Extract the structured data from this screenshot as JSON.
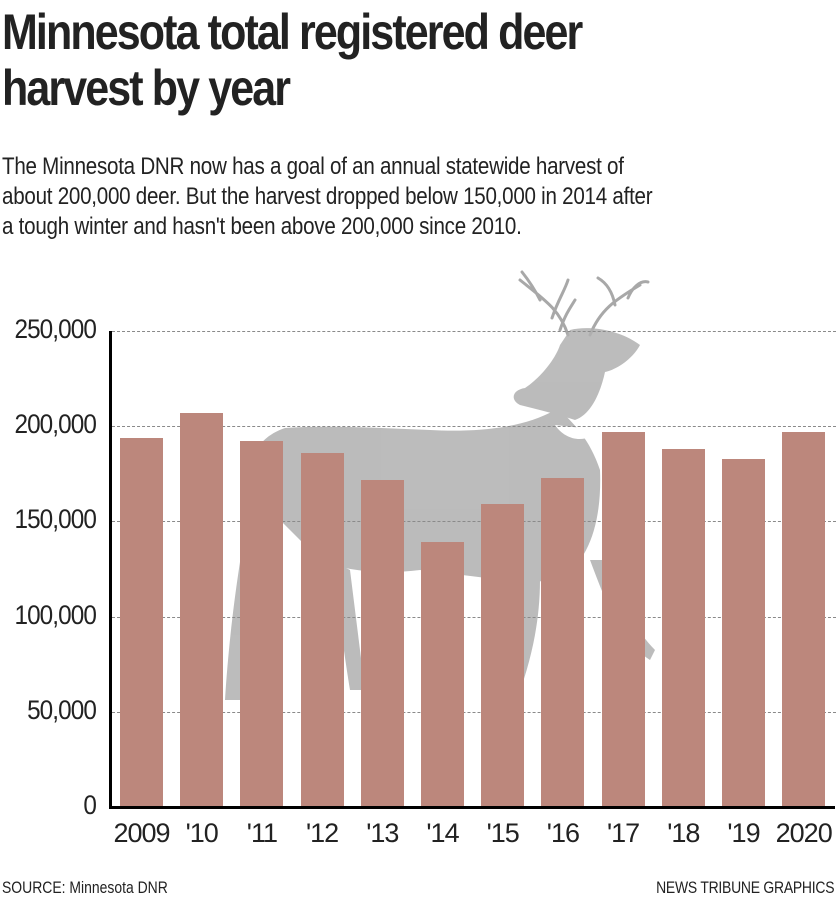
{
  "header": {
    "title_line1": "Minnesota total registered deer",
    "title_line2": "harvest by year",
    "subtitle_line1": "The Minnesota DNR now has a goal of an annual statewide harvest of",
    "subtitle_line2": "about 200,000 deer. But the harvest dropped below 150,000 in 2014 after",
    "subtitle_line3": "a tough winter and hasn't been above 200,000 since 2010."
  },
  "footer": {
    "source": "SOURCE: Minnesota DNR",
    "credit": "NEWS TRIBUNE GRAPHICS"
  },
  "colors": {
    "bar": "#bc877c",
    "gridline": "#8a8a8a",
    "axis": "#000000",
    "illustration": "#a8a8a8"
  },
  "chart_data": {
    "type": "bar",
    "title": "Minnesota total registered deer harvest by year",
    "subtitle": "The Minnesota DNR now has a goal of an annual statewide harvest of about 200,000 deer. But the harvest dropped below 150,000 in 2014 after a tough winter and hasn't been above 200,000 since 2010.",
    "categories": [
      "2009",
      "'10",
      "'11",
      "'12",
      "'13",
      "'14",
      "'15",
      "'16",
      "'17",
      "'18",
      "'19",
      "2020"
    ],
    "values": [
      194000,
      207000,
      192000,
      186000,
      172000,
      139000,
      159000,
      173000,
      197000,
      188000,
      183000,
      197000
    ],
    "xlabel": "",
    "ylabel": "",
    "ylim": [
      0,
      250000
    ],
    "yticks": [
      "0",
      "50,000",
      "100,000",
      "150,000",
      "200,000",
      "250,000"
    ],
    "grid": true,
    "grid_style": "dashed horizontal",
    "legend": null,
    "annotations": [
      "Background illustration of a white-tailed deer buck"
    ],
    "source": "SOURCE: Minnesota DNR",
    "credit": "NEWS TRIBUNE GRAPHICS"
  }
}
